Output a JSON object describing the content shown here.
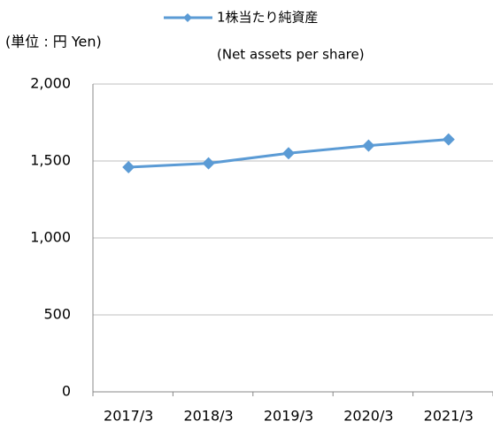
{
  "chart_data": {
    "type": "line",
    "unit_label": "(単位 : 円 Yen)",
    "series_subtitle": "(Net assets per share)",
    "categories": [
      "2017/3",
      "2018/3",
      "2019/3",
      "2020/3",
      "2021/3"
    ],
    "series": [
      {
        "name": "1株当たり純資産",
        "color": "#5b9bd5",
        "values": [
          1460,
          1485,
          1550,
          1600,
          1640
        ]
      }
    ],
    "ylim": [
      0,
      2000
    ],
    "yticks": [
      0,
      500,
      {
        "value": 1000,
        "label": "1,000"
      },
      {
        "value": 1500,
        "label": "1,500"
      },
      {
        "value": 2000,
        "label": "2,000"
      }
    ],
    "grid": true
  }
}
